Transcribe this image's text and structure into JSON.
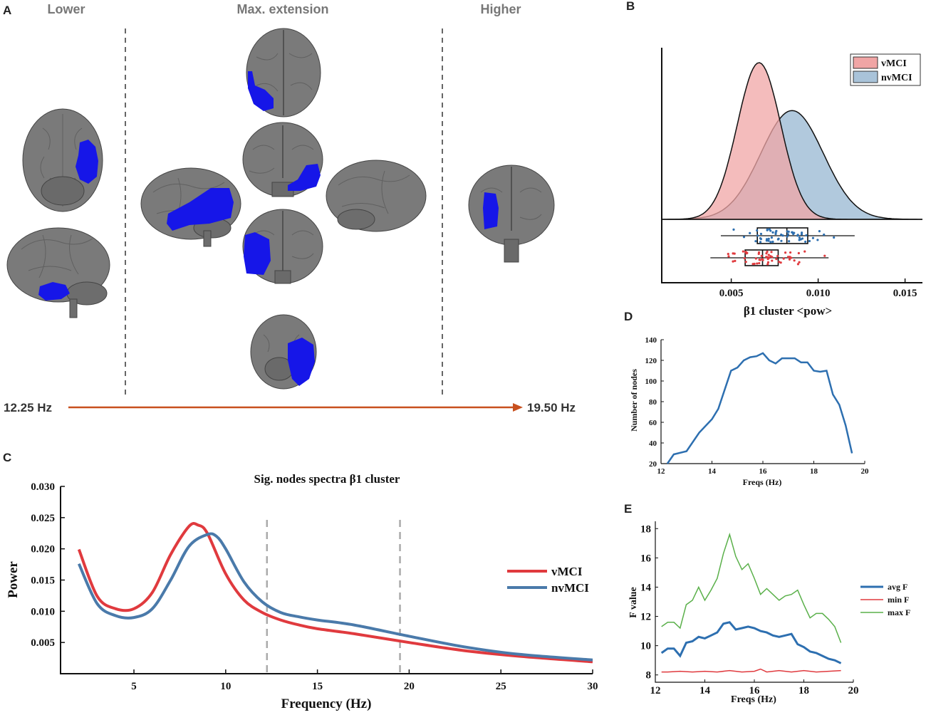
{
  "panel_letters": {
    "a": "A",
    "b": "B",
    "c": "C",
    "d": "D",
    "e": "E"
  },
  "panel_a": {
    "lower_label": "Lower",
    "max_label": "Max. extension",
    "higher_label": "Higher",
    "freq_start": "12.25 Hz",
    "freq_end": "19.50 Hz",
    "arrow_color": "#c8501e",
    "highlight_color": "#1616e8"
  },
  "chart_data": [
    {
      "id": "B",
      "type": "area",
      "title": "",
      "xlabel": "β1 cluster <pow>",
      "xlim": [
        0.001,
        0.016
      ],
      "xticks": [
        "0.005",
        "0.010",
        "0.015"
      ],
      "xtick_values": [
        0.005,
        0.01,
        0.015
      ],
      "series": [
        {
          "name": "vMCI",
          "color": "#f0a5a5",
          "mean": 0.0066,
          "sd": 0.00125,
          "box": {
            "q1": 0.0058,
            "median": 0.0068,
            "q3": 0.0077,
            "whisker_low": 0.0038,
            "whisker_high": 0.0106
          }
        },
        {
          "name": "nvMCI",
          "color": "#a9c3d9",
          "mean": 0.0085,
          "sd": 0.0018,
          "box": {
            "q1": 0.0065,
            "median": 0.0082,
            "q3": 0.0094,
            "whisker_low": 0.0044,
            "whisker_high": 0.0121
          }
        }
      ],
      "legend": [
        "vMCI",
        "nvMCI"
      ],
      "legend_position": "top-right"
    },
    {
      "id": "C",
      "type": "line",
      "title": "Sig. nodes spectra β1 cluster",
      "xlabel": "Frequency (Hz)",
      "ylabel": "Power",
      "xlim": [
        1,
        30
      ],
      "ylim": [
        0,
        0.03
      ],
      "xticks": [
        5,
        10,
        15,
        20,
        25,
        30
      ],
      "yticks": [
        "0.005",
        "0.010",
        "0.015",
        "0.020",
        "0.025",
        "0.030"
      ],
      "ytick_values": [
        0.005,
        0.01,
        0.015,
        0.02,
        0.025,
        0.03
      ],
      "vlines": [
        12.25,
        19.5
      ],
      "series": [
        {
          "name": "vMCI",
          "color": "#e03a3e",
          "x": [
            2,
            3,
            4,
            5,
            6,
            7,
            8,
            8.5,
            9,
            10,
            11,
            12,
            13,
            14,
            15,
            17,
            20,
            23,
            26,
            30
          ],
          "y": [
            0.0199,
            0.0124,
            0.0104,
            0.0104,
            0.013,
            0.0191,
            0.0236,
            0.0238,
            0.0225,
            0.016,
            0.0118,
            0.0098,
            0.0086,
            0.0078,
            0.0072,
            0.0064,
            0.005,
            0.0037,
            0.0028,
            0.0019
          ]
        },
        {
          "name": "nvMCI",
          "color": "#4a7aaa",
          "x": [
            2,
            3,
            4,
            5,
            6,
            7,
            8,
            9,
            9.5,
            10,
            11,
            12,
            13,
            14,
            15,
            17,
            20,
            23,
            26,
            30
          ],
          "y": [
            0.0176,
            0.0112,
            0.0093,
            0.009,
            0.0104,
            0.015,
            0.0204,
            0.0223,
            0.022,
            0.02,
            0.0147,
            0.0115,
            0.0098,
            0.0091,
            0.0086,
            0.0078,
            0.006,
            0.0043,
            0.0031,
            0.0022
          ]
        }
      ],
      "legend": [
        "vMCI",
        "nvMCI"
      ],
      "legend_position": "right"
    },
    {
      "id": "D",
      "type": "line",
      "title": "",
      "xlabel": "Freqs (Hz)",
      "ylabel": "Number of nodes",
      "xlim": [
        12,
        20
      ],
      "ylim": [
        20,
        140
      ],
      "xticks": [
        12,
        14,
        16,
        18,
        20
      ],
      "yticks": [
        20,
        40,
        60,
        80,
        100,
        120,
        140
      ],
      "series": [
        {
          "name": "nodes",
          "color": "#2d6fb0",
          "x": [
            12.25,
            12.5,
            13,
            13.5,
            14,
            14.25,
            14.75,
            15,
            15.25,
            15.5,
            15.75,
            16,
            16.25,
            16.5,
            16.75,
            17,
            17.25,
            17.5,
            17.75,
            18,
            18.25,
            18.5,
            18.75,
            19,
            19.25,
            19.5
          ],
          "y": [
            20,
            29,
            32,
            50,
            63,
            73,
            110,
            113,
            120,
            123,
            124,
            127,
            120,
            117,
            122,
            122,
            122,
            118,
            118,
            110,
            109,
            110,
            87,
            77,
            57,
            30
          ]
        }
      ]
    },
    {
      "id": "E",
      "type": "line",
      "title": "",
      "xlabel": "Freqs (Hz)",
      "ylabel": "F value",
      "xlim": [
        12,
        20
      ],
      "ylim": [
        7.5,
        18.5
      ],
      "xticks": [
        12,
        14,
        16,
        18,
        20
      ],
      "yticks": [
        8,
        10,
        12,
        14,
        16,
        18
      ],
      "series": [
        {
          "name": "avg F",
          "color": "#2d6fb0",
          "x": [
            12.25,
            12.5,
            12.75,
            13,
            13.25,
            13.5,
            13.75,
            14,
            14.25,
            14.5,
            14.75,
            15,
            15.25,
            15.5,
            15.75,
            16,
            16.25,
            16.5,
            16.75,
            17,
            17.25,
            17.5,
            17.75,
            18,
            18.25,
            18.5,
            18.75,
            19,
            19.25,
            19.5
          ],
          "y": [
            9.5,
            9.8,
            9.8,
            9.3,
            10.2,
            10.3,
            10.6,
            10.5,
            10.7,
            10.9,
            11.5,
            11.6,
            11.1,
            11.2,
            11.3,
            11.2,
            11.0,
            10.9,
            10.7,
            10.6,
            10.7,
            10.8,
            10.1,
            9.9,
            9.6,
            9.5,
            9.3,
            9.1,
            9.0,
            8.8
          ]
        },
        {
          "name": "min F",
          "color": "#e03a3e",
          "x": [
            12.25,
            12.5,
            13,
            13.5,
            14,
            14.5,
            15,
            15.5,
            16,
            16.25,
            16.5,
            17,
            17.5,
            18,
            18.5,
            19,
            19.5
          ],
          "y": [
            8.2,
            8.2,
            8.25,
            8.2,
            8.25,
            8.2,
            8.3,
            8.2,
            8.25,
            8.4,
            8.2,
            8.3,
            8.2,
            8.3,
            8.2,
            8.25,
            8.3
          ]
        },
        {
          "name": "max F",
          "color": "#5ab04a",
          "x": [
            12.25,
            12.5,
            12.75,
            13,
            13.25,
            13.5,
            13.75,
            14,
            14.25,
            14.5,
            14.75,
            15,
            15.25,
            15.5,
            15.75,
            16,
            16.25,
            16.5,
            16.75,
            17,
            17.25,
            17.5,
            17.75,
            18,
            18.25,
            18.5,
            18.75,
            19,
            19.25,
            19.5
          ],
          "y": [
            11.3,
            11.6,
            11.6,
            11.2,
            12.8,
            13.1,
            14.0,
            13.1,
            13.8,
            14.6,
            16.3,
            17.6,
            16.1,
            15.2,
            15.6,
            14.6,
            13.5,
            13.9,
            13.5,
            13.1,
            13.4,
            13.5,
            13.8,
            12.8,
            11.9,
            12.2,
            12.2,
            11.8,
            11.3,
            10.2
          ]
        }
      ],
      "legend": [
        "avg F",
        "min F",
        "max F"
      ],
      "legend_position": "right"
    }
  ]
}
